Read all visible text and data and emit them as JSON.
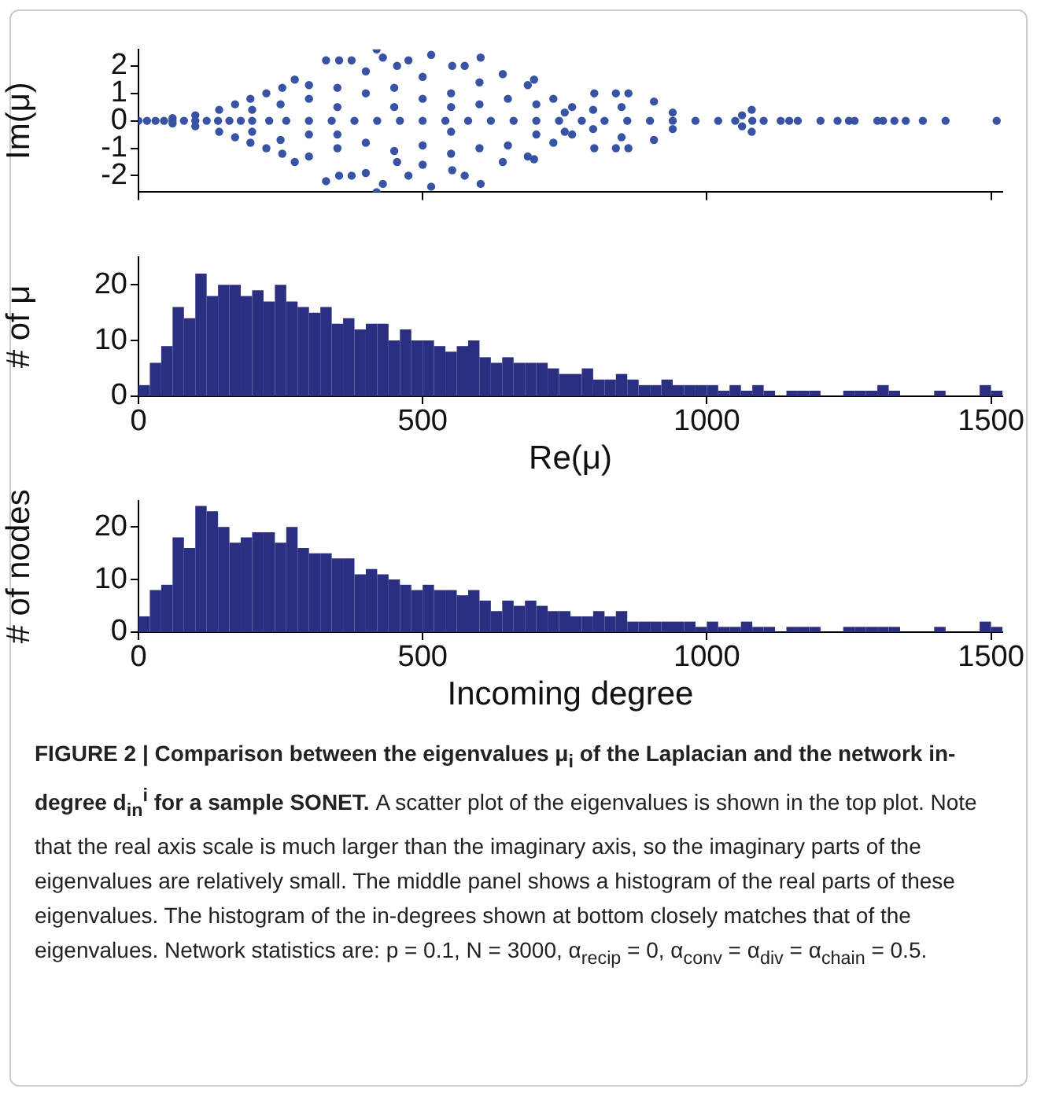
{
  "chart_data": [
    {
      "type": "scatter",
      "ylabel": "Im(μ)",
      "marker": "circle",
      "tick_labels": "y",
      "color": "#3953a4",
      "xlim": [
        0,
        1520
      ],
      "xticks": [
        0,
        500,
        1000,
        1500
      ],
      "ylim": [
        -2.6,
        2.6
      ],
      "yticks": [
        -2,
        -1,
        0,
        1,
        2
      ],
      "x": [
        0,
        15,
        30,
        45,
        60,
        80,
        100,
        120,
        140,
        160,
        180,
        200,
        230,
        260,
        300,
        340,
        380,
        420,
        460,
        500,
        540,
        580,
        620,
        660,
        700,
        740,
        780,
        820,
        860,
        900,
        940,
        980,
        1020,
        1050,
        1080,
        1100,
        1130,
        1145,
        1160,
        1200,
        1230,
        1250,
        1260,
        1300,
        1310,
        1330,
        1350,
        1380,
        1420,
        1510,
        60,
        60,
        100,
        100,
        142,
        142,
        170,
        170,
        197,
        197,
        225,
        225,
        253,
        253,
        275,
        275,
        300,
        300,
        330,
        330,
        353,
        353,
        375,
        375,
        400,
        400,
        419,
        419,
        430,
        430,
        455,
        455,
        475,
        475,
        500,
        500,
        515,
        515,
        552,
        552,
        574,
        574,
        602,
        602,
        641,
        641,
        685,
        685,
        696,
        696,
        730,
        730,
        763,
        763,
        802,
        802,
        840,
        840,
        862,
        862,
        907,
        907,
        940,
        940,
        1062,
        1062,
        1079,
        1079,
        200,
        200,
        250,
        250,
        300,
        300,
        350,
        350,
        350,
        350,
        400,
        400,
        450,
        450,
        450,
        500,
        500,
        550,
        550,
        550,
        550,
        600,
        600,
        600,
        650,
        650,
        700,
        700,
        750,
        750,
        800,
        800,
        850,
        850
      ],
      "values": [
        0,
        0,
        0,
        0,
        0,
        0,
        0,
        0,
        0,
        0,
        0,
        0,
        0,
        0,
        0,
        0,
        0,
        0,
        0,
        0,
        0,
        0,
        0,
        0,
        0,
        0,
        0,
        0,
        0,
        0,
        0,
        0,
        0,
        0,
        0,
        0,
        0,
        0,
        0,
        0,
        0,
        0,
        0,
        0,
        0,
        0,
        0,
        0,
        0,
        0,
        0.1,
        -0.1,
        0.2,
        -0.2,
        0.4,
        -0.4,
        0.6,
        -0.6,
        0.8,
        -0.8,
        1.0,
        -1.0,
        1.2,
        -1.2,
        1.5,
        -1.5,
        1.3,
        -1.3,
        2.2,
        -2.2,
        2.2,
        -2.0,
        2.2,
        -2.0,
        1.8,
        -1.9,
        2.6,
        -2.6,
        2.3,
        -2.3,
        2.0,
        -1.5,
        2.2,
        -2.0,
        1.6,
        -1.6,
        2.4,
        -2.4,
        2.0,
        -1.8,
        2.0,
        -2.0,
        2.3,
        -2.3,
        1.7,
        -1.5,
        1.3,
        -1.3,
        1.5,
        -1.4,
        0.8,
        -0.8,
        0.5,
        -0.5,
        1.0,
        -1.0,
        1.0,
        -1.0,
        1.0,
        -1.0,
        0.7,
        -0.7,
        0.3,
        -0.3,
        0.2,
        -0.2,
        0.4,
        -0.4,
        0.4,
        -0.4,
        0.6,
        -0.7,
        0.8,
        -0.5,
        1.2,
        -1.0,
        0.5,
        -0.5,
        1.0,
        -0.8,
        1.2,
        -1.1,
        0.5,
        0.8,
        -0.9,
        1.0,
        -1.2,
        0.5,
        -0.4,
        1.4,
        -1.0,
        0.6,
        0.8,
        -0.9,
        0.6,
        -0.5,
        0.3,
        -0.4,
        0.4,
        -0.3,
        0.5,
        -0.6
      ]
    },
    {
      "type": "histogram",
      "ylabel": "# of μ",
      "xlabel": "Re(μ)",
      "color": "#2b2f82",
      "xlim": [
        0,
        1520
      ],
      "xticks": [
        0,
        500,
        1000,
        1500
      ],
      "ylim": [
        0,
        25
      ],
      "yticks": [
        0,
        10,
        20
      ],
      "bins": [
        0,
        20,
        40,
        60,
        80,
        100,
        120,
        140,
        160,
        180,
        200,
        220,
        240,
        260,
        280,
        300,
        320,
        340,
        360,
        380,
        400,
        420,
        440,
        460,
        480,
        500,
        520,
        540,
        560,
        580,
        600,
        620,
        640,
        660,
        680,
        700,
        720,
        740,
        760,
        780,
        800,
        820,
        840,
        860,
        880,
        900,
        920,
        940,
        960,
        980,
        1000,
        1020,
        1040,
        1060,
        1080,
        1100,
        1120,
        1140,
        1160,
        1180,
        1200,
        1220,
        1240,
        1260,
        1280,
        1300,
        1320,
        1340,
        1360,
        1380,
        1400,
        1420,
        1440,
        1460,
        1480,
        1500,
        1520
      ],
      "values": [
        2,
        6,
        9,
        16,
        14,
        22,
        18,
        20,
        20,
        18,
        19,
        17,
        20,
        17,
        16,
        15,
        16,
        13,
        14,
        12,
        13,
        13,
        10,
        12,
        10,
        10,
        9,
        8,
        9,
        10,
        7,
        6,
        7,
        6,
        6,
        6,
        5,
        4,
        4,
        5,
        3,
        3,
        4,
        3,
        2,
        2,
        3,
        2,
        2,
        2,
        2,
        1,
        2,
        1,
        2,
        1,
        0,
        1,
        1,
        1,
        0,
        0,
        1,
        1,
        1,
        2,
        1,
        0,
        0,
        0,
        1,
        0,
        0,
        0,
        2,
        1
      ]
    },
    {
      "type": "histogram",
      "ylabel": "# of nodes",
      "xlabel": "Incoming degree",
      "color": "#2b2f82",
      "xlim": [
        0,
        1520
      ],
      "xticks": [
        0,
        500,
        1000,
        1500
      ],
      "ylim": [
        0,
        25
      ],
      "yticks": [
        0,
        10,
        20
      ],
      "bins": [
        0,
        20,
        40,
        60,
        80,
        100,
        120,
        140,
        160,
        180,
        200,
        220,
        240,
        260,
        280,
        300,
        320,
        340,
        360,
        380,
        400,
        420,
        440,
        460,
        480,
        500,
        520,
        540,
        560,
        580,
        600,
        620,
        640,
        660,
        680,
        700,
        720,
        740,
        760,
        780,
        800,
        820,
        840,
        860,
        880,
        900,
        920,
        940,
        960,
        980,
        1000,
        1020,
        1040,
        1060,
        1080,
        1100,
        1120,
        1140,
        1160,
        1180,
        1200,
        1220,
        1240,
        1260,
        1280,
        1300,
        1320,
        1340,
        1360,
        1380,
        1400,
        1420,
        1440,
        1460,
        1480,
        1500,
        1520
      ],
      "values": [
        3,
        8,
        9,
        18,
        16,
        24,
        23,
        20,
        17,
        18,
        19,
        19,
        17,
        20,
        16,
        15,
        15,
        14,
        14,
        11,
        12,
        11,
        10,
        9,
        8,
        9,
        8,
        8,
        7,
        8,
        6,
        4,
        6,
        5,
        6,
        5,
        4,
        4,
        3,
        3,
        4,
        3,
        4,
        2,
        2,
        2,
        2,
        2,
        2,
        1,
        2,
        1,
        1,
        2,
        1,
        1,
        0,
        1,
        1,
        1,
        0,
        0,
        1,
        1,
        1,
        1,
        1,
        0,
        0,
        0,
        1,
        0,
        0,
        0,
        2,
        1
      ],
      "annotations": [
        "FIGURE 2 | Comparison between the eigenvalues μ$_{i}$ of the Laplacian and the network in-degree d$_{in}$$^{i}$ for a sample SONET.",
        "A scatter plot of the eigenvalues is shown in the top plot. Note that the real axis scale is much larger than the imaginary axis, so the imaginary parts of the eigenvalues are relatively small. The middle panel shows a histogram of the real parts of these eigenvalues. The histogram of the in-degrees shown at bottom closely matches that of the eigenvalues. Network statistics are: p = 0.1, N = 3000, α$_{recip}$ = 0, α$_{conv}$ = α$_{div}$ = α$_{chain}$ = 0.5."
      ]
    }
  ]
}
